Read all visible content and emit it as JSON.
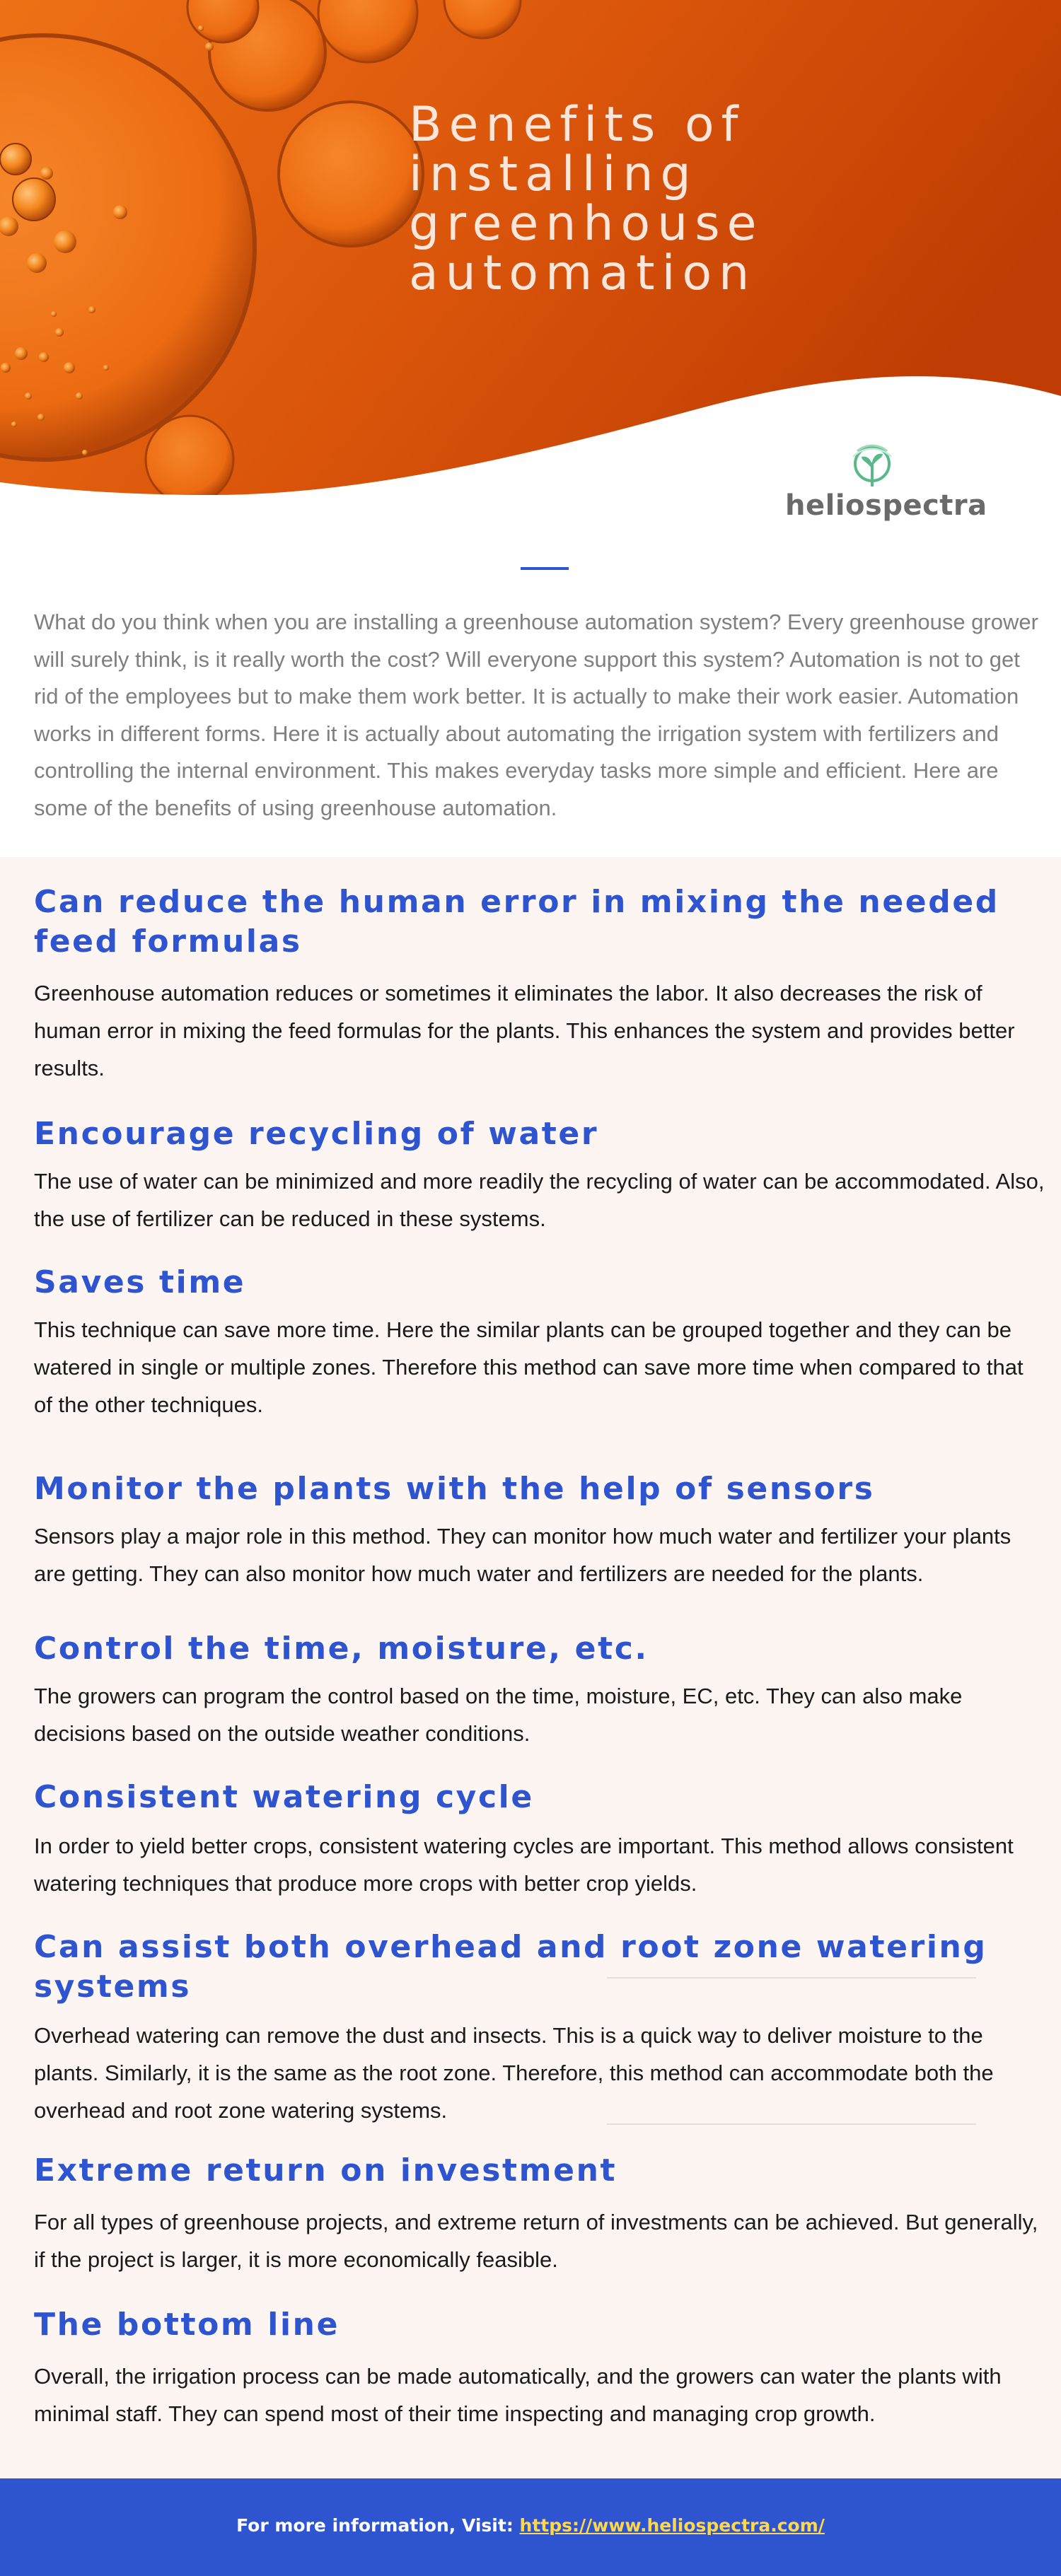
{
  "hero": {
    "title_lines": [
      "Benefits of installing",
      "greenhouse",
      "automation"
    ],
    "brand": "heliospectra"
  },
  "intro": {
    "text": "What do you think when you are installing a greenhouse automation system? Every greenhouse grower will surely think, is it really worth the cost? Will everyone support this system? Automation is not to get rid of the employees but to make them work better. It is actually to make their work easier. Automation works in different forms. Here it is actually about automating the irrigation system with fertilizers and controlling the internal environment. This makes everyday tasks more simple and efficient. Here are some of the benefits of using greenhouse automation."
  },
  "sections": [
    {
      "heading": "Can reduce the human error in mixing the needed feed formulas",
      "body": "Greenhouse automation reduces or sometimes it eliminates the labor. It also decreases the risk of human error in mixing the feed formulas for the plants. This enhances the system and provides better results."
    },
    {
      "heading": "Encourage recycling of water",
      "body": "The use of water can be minimized and more readily the recycling of water can be accommodated. Also, the use of fertilizer can be reduced in these systems."
    },
    {
      "heading": "Saves time",
      "body": "This technique can save more time. Here the similar plants can be grouped together and they can be watered in single or multiple zones. Therefore this method can save more time when compared to that of the other techniques."
    },
    {
      "heading": "Monitor the plants with the help of sensors",
      "body": "Sensors play a major role in this method. They can monitor how much water and fertilizer your plants are getting. They can also monitor how much water and fertilizers are needed for the plants."
    },
    {
      "heading": "Control the time, moisture, etc.",
      "body": "The growers can program the control based on the time, moisture, EC, etc. They can also make decisions based on the outside weather conditions."
    },
    {
      "heading": "Consistent watering cycle",
      "body": "In order to yield better crops, consistent watering cycles are important. This method allows consistent watering techniques that produce more crops with better crop yields."
    },
    {
      "heading": "Can assist both overhead and root zone watering systems",
      "body": "Overhead watering can remove the dust and insects. This is a quick way to deliver moisture to the plants. Similarly, it is the same as the root zone. Therefore, this method can accommodate both the overhead and root zone watering systems."
    },
    {
      "heading": "Extreme return on investment",
      "body": "For all types of greenhouse projects, and extreme return of investments can be achieved. But generally, if the project is larger, it is more economically feasible."
    },
    {
      "heading": "The bottom line",
      "body": "Overall, the irrigation process can be made automatically, and the growers can water the plants with minimal staff. They can spend most of their time inspecting and managing crop growth."
    }
  ],
  "footer": {
    "prefix": "For more information, Visit: ",
    "link_text": "https://www.heliospectra.com/"
  },
  "colors": {
    "accent": "#2e55cf",
    "hero_orange": "#e8600f",
    "footer_link": "#ffd84a",
    "brand_green": "#5ab88a",
    "brand_gray": "#6a6a6a"
  }
}
